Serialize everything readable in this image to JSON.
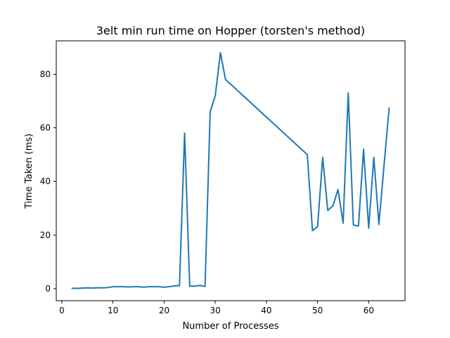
{
  "chart_data": {
    "type": "line",
    "title": "3elt min run time on Hopper (torsten's method)",
    "xlabel": "Number of Processes",
    "ylabel": "Time Taken (ms)",
    "xlim": [
      -1.1,
      67.1
    ],
    "ylim": [
      -4.4,
      92.4
    ],
    "x_ticks": [
      0,
      10,
      20,
      30,
      40,
      50,
      60
    ],
    "y_ticks": [
      0,
      20,
      40,
      60,
      80
    ],
    "grid": false,
    "legend": "none",
    "series": [
      {
        "color": "#1f77b4",
        "points": [
          [
            2,
            0.2
          ],
          [
            3,
            0.2
          ],
          [
            4,
            0.3
          ],
          [
            5,
            0.4
          ],
          [
            6,
            0.3
          ],
          [
            7,
            0.4
          ],
          [
            8,
            0.4
          ],
          [
            9,
            0.5
          ],
          [
            10,
            0.8
          ],
          [
            11,
            0.8
          ],
          [
            12,
            0.8
          ],
          [
            13,
            0.7
          ],
          [
            14,
            0.8
          ],
          [
            15,
            0.8
          ],
          [
            16,
            0.6
          ],
          [
            17,
            0.8
          ],
          [
            18,
            0.8
          ],
          [
            19,
            0.8
          ],
          [
            20,
            0.6
          ],
          [
            21,
            0.8
          ],
          [
            22,
            1.1
          ],
          [
            23,
            1.2
          ],
          [
            24,
            58
          ],
          [
            25,
            1.0
          ],
          [
            26,
            1.0
          ],
          [
            27,
            1.3
          ],
          [
            28,
            0.9
          ],
          [
            29,
            66
          ],
          [
            30,
            72
          ],
          [
            31,
            88
          ],
          [
            32,
            78
          ],
          [
            48,
            50
          ],
          [
            49,
            21.7
          ],
          [
            50,
            23.2
          ],
          [
            51,
            49
          ],
          [
            52,
            29.2
          ],
          [
            53,
            31
          ],
          [
            54,
            37
          ],
          [
            55,
            24.5
          ],
          [
            56,
            73
          ],
          [
            57,
            23.8
          ],
          [
            58,
            23.4
          ],
          [
            59,
            52
          ],
          [
            60,
            22.6
          ],
          [
            61,
            49
          ],
          [
            62,
            24
          ],
          [
            63,
            46
          ],
          [
            64,
            67.4
          ]
        ]
      }
    ]
  }
}
